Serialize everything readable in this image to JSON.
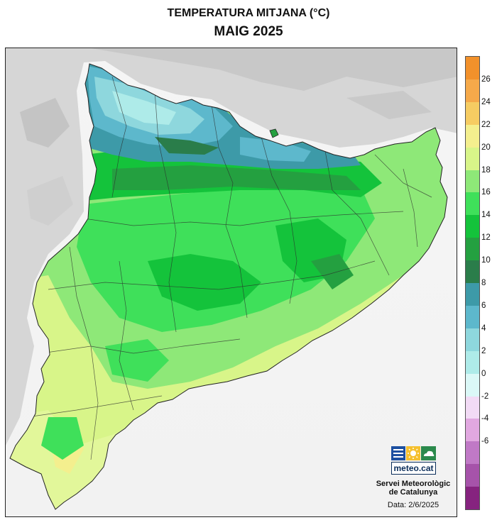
{
  "title": "TEMPERATURA MITJANA (°C)",
  "subtitle": "MAIG 2025",
  "legend": {
    "ticks": [
      "26",
      "24",
      "22",
      "20",
      "18",
      "16",
      "14",
      "12",
      "10",
      "8",
      "6",
      "4",
      "2",
      "0",
      "-2",
      "-4",
      "-6"
    ],
    "band_colors": [
      "#f2912b",
      "#f5a94a",
      "#f6cc62",
      "#f4ef8e",
      "#d8f589",
      "#8ee878",
      "#3fe05a",
      "#14c33b",
      "#24a040",
      "#2a7d4a",
      "#3d9aa8",
      "#5db8cc",
      "#8ed7dd",
      "#aeebe9",
      "#dbf8f7",
      "#f2dbf5",
      "#e1a8e0",
      "#c079c6",
      "#a653aa",
      "#86237f"
    ]
  },
  "logo": {
    "text": "meteo.cat",
    "colors": [
      "#1c4fa0",
      "#f5c02e",
      "#2b8a4c"
    ]
  },
  "credit": {
    "line1": "Servei Meteorològic",
    "line2": "de Catalunya",
    "date": "Data: 2/6/2025"
  }
}
